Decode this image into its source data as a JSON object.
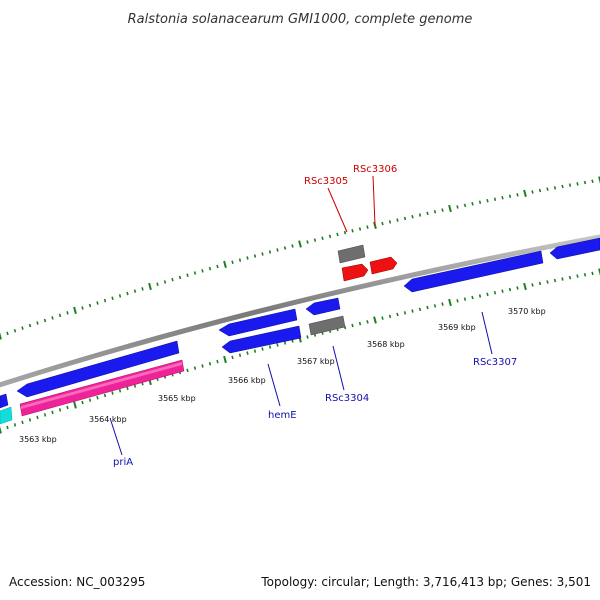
{
  "title": "Ralstonia solanacearum GMI1000, complete genome",
  "footer": {
    "accession": "Accession: NC_003295",
    "summary": "Topology: circular; Length: 3,716,413 bp; Genes: 3,501"
  },
  "colors": {
    "backbone": "#8a8a8a",
    "tick": "#1e7f1e",
    "label_blue": "#1010aa",
    "label_red": "#cc0000",
    "gene_blue": "#1a1aee",
    "gene_magenta": "#ee2299",
    "gene_cyan": "#11dddd",
    "gene_red": "#ee1111",
    "gene_gray": "#6e6e6e"
  },
  "scale": {
    "kbp_labels": [
      "3563 kbp",
      "3564 kbp",
      "3565 kbp",
      "3566 kbp",
      "3567 kbp",
      "3568 kbp",
      "3569 kbp",
      "3570 kbp"
    ]
  },
  "gene_labels": [
    {
      "name": "priA",
      "color": "label_blue"
    },
    {
      "name": "hemE",
      "color": "label_blue"
    },
    {
      "name": "RSc3304",
      "color": "label_blue"
    },
    {
      "name": "RSc3307",
      "color": "label_blue"
    },
    {
      "name": "RSc3305",
      "color": "label_red"
    },
    {
      "name": "RSc3306",
      "color": "label_red"
    }
  ],
  "genes": [
    {
      "color": "gene_cyan",
      "track": "outer-low",
      "start": 3562.5,
      "end": 3562.8,
      "strand": "+"
    },
    {
      "color": "gene_magenta",
      "track": "outer-low",
      "start": 3562.8,
      "end": 3565.0,
      "strand": "+"
    },
    {
      "color": "gene_blue",
      "track": "outer",
      "start": 3562.5,
      "end": 3562.6,
      "strand": "-"
    },
    {
      "color": "gene_blue",
      "track": "outer",
      "start": 3562.8,
      "end": 3565.0,
      "strand": "-"
    },
    {
      "color": "gene_blue",
      "track": "outer",
      "start": 3565.8,
      "end": 3566.7,
      "strand": "-"
    },
    {
      "color": "gene_blue",
      "track": "outer-low",
      "start": 3565.8,
      "end": 3566.7,
      "strand": "-"
    },
    {
      "color": "gene_blue",
      "track": "outer",
      "start": 3567.0,
      "end": 3567.4,
      "strand": "-"
    },
    {
      "color": "gene_gray",
      "track": "outer-low",
      "start": 3567.0,
      "end": 3567.4,
      "strand": "-"
    },
    {
      "color": "gene_gray",
      "track": "inner-top",
      "start": 3567.3,
      "end": 3567.6,
      "strand": "+"
    },
    {
      "color": "gene_red",
      "track": "inner",
      "start": 3567.3,
      "end": 3567.6,
      "strand": "+"
    },
    {
      "color": "gene_red",
      "track": "inner",
      "start": 3567.7,
      "end": 3568.0,
      "strand": "+"
    },
    {
      "color": "gene_blue",
      "track": "outer",
      "start": 3568.4,
      "end": 3570.5,
      "strand": "-"
    },
    {
      "color": "gene_blue",
      "track": "outer",
      "start": 3570.6,
      "end": 3571.2,
      "strand": "-"
    }
  ]
}
